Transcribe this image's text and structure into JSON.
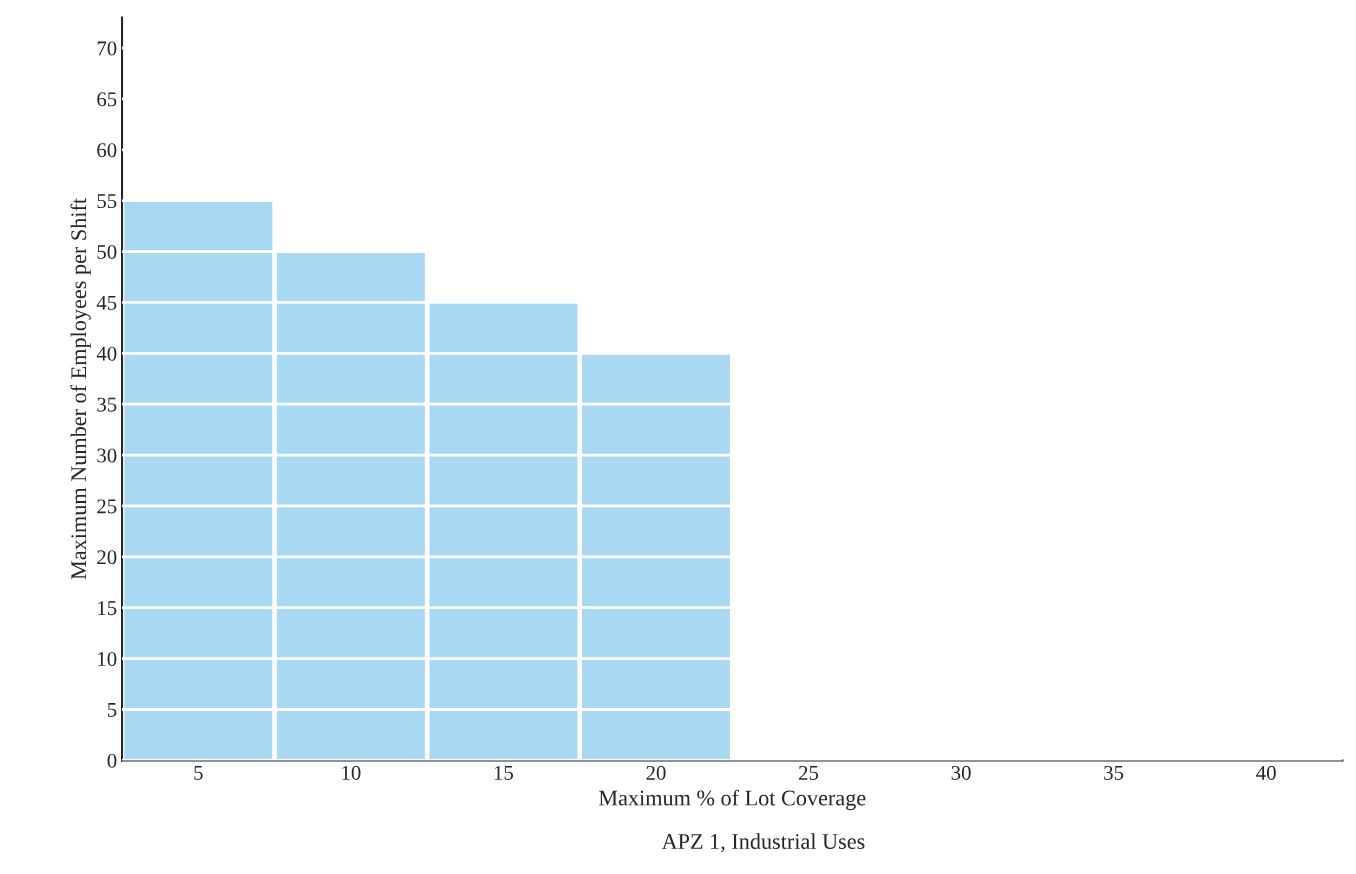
{
  "chart_data": {
    "type": "bar",
    "xlabel": "Maximum % of Lot Coverage",
    "ylabel": "Maximum Number of Employees per Shift",
    "annotations": [
      "APZ 1, Industrial Uses"
    ],
    "categories": [
      "5",
      "10",
      "15",
      "20",
      "25",
      "30",
      "35",
      "40"
    ],
    "values": [
      55,
      50,
      45,
      40,
      0,
      0,
      0,
      0
    ],
    "color": "#a9d8f2",
    "ylim": [
      0,
      73
    ],
    "yticks": [
      0,
      5,
      10,
      15,
      20,
      25,
      30,
      35,
      40,
      45,
      50,
      55,
      60,
      65,
      70
    ],
    "grid": "y"
  }
}
